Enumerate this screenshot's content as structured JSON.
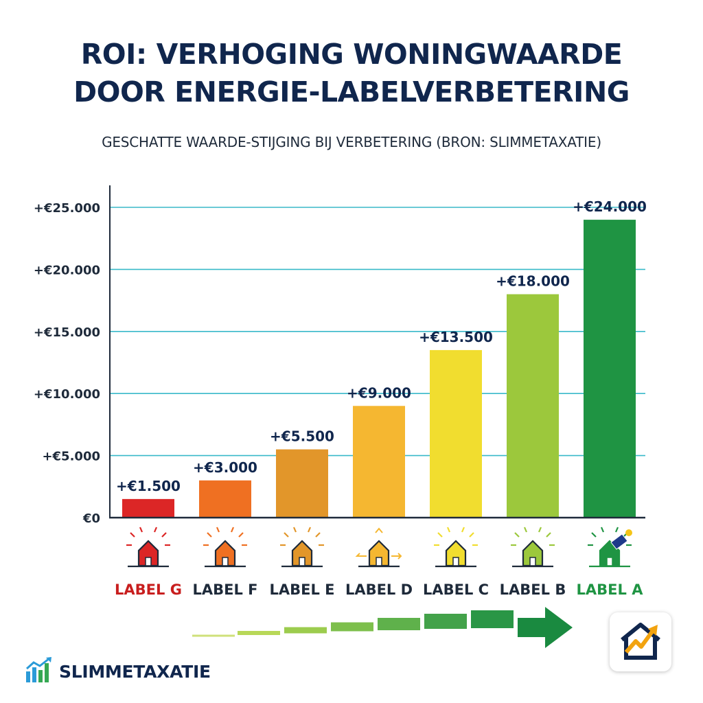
{
  "title_line1": "ROI: VERHOGING WONINGWAARDE",
  "title_line2": "DOOR ENERGIE-LABELVERBETERING",
  "subtitle": "GESCHATTE WAARDE-STIJGING BIJ VERBETERING (BRON: SLIMMETAXATIE)",
  "brand": {
    "name": "SLIMMETAXATIE",
    "logo_icon": "bar-chart-arrow-icon",
    "app_icon": "house-growth-arrow-icon"
  },
  "chart_data": {
    "type": "bar",
    "categories": [
      "LABEL G",
      "LABEL F",
      "LABEL E",
      "LABEL D",
      "LABEL C",
      "LABEL B",
      "LABEL A"
    ],
    "values": [
      1500,
      3000,
      5500,
      9000,
      13500,
      18000,
      24000
    ],
    "value_labels": [
      "+€1.500",
      "+€3.000",
      "+€5.500",
      "+€9.000",
      "+€13.500",
      "+€18.000",
      "+€24.000"
    ],
    "bar_colors": [
      "#dc2626",
      "#ef7022",
      "#e2962a",
      "#f5b731",
      "#f1dd2f",
      "#9cc83c",
      "#1f9443"
    ],
    "category_label_colors": [
      "#c81e1e",
      "#1e2a3a",
      "#1e2a3a",
      "#1e2a3a",
      "#1e2a3a",
      "#1e2a3a",
      "#1f9443"
    ],
    "icons": [
      "house-icon",
      "house-icon",
      "house-icon",
      "house-arrows-icon",
      "house-icon",
      "house-icon",
      "solar-house-icon"
    ],
    "yticks": [
      0,
      5000,
      10000,
      15000,
      20000,
      25000
    ],
    "ytick_labels": [
      "€0",
      "+€5.000",
      "+€10.000",
      "+€15.000",
      "+€20.000",
      "+€25.000"
    ],
    "ylim": [
      0,
      25000
    ],
    "grid": true,
    "gridline_color": "#38b9c9",
    "xlabel": "",
    "ylabel": "",
    "progress_arrow_colors": [
      "#cfe07a",
      "#b8d858",
      "#9ccc4e",
      "#7dbf4c",
      "#5fb14b",
      "#43a24a",
      "#2a9646",
      "#1a8a40"
    ]
  }
}
